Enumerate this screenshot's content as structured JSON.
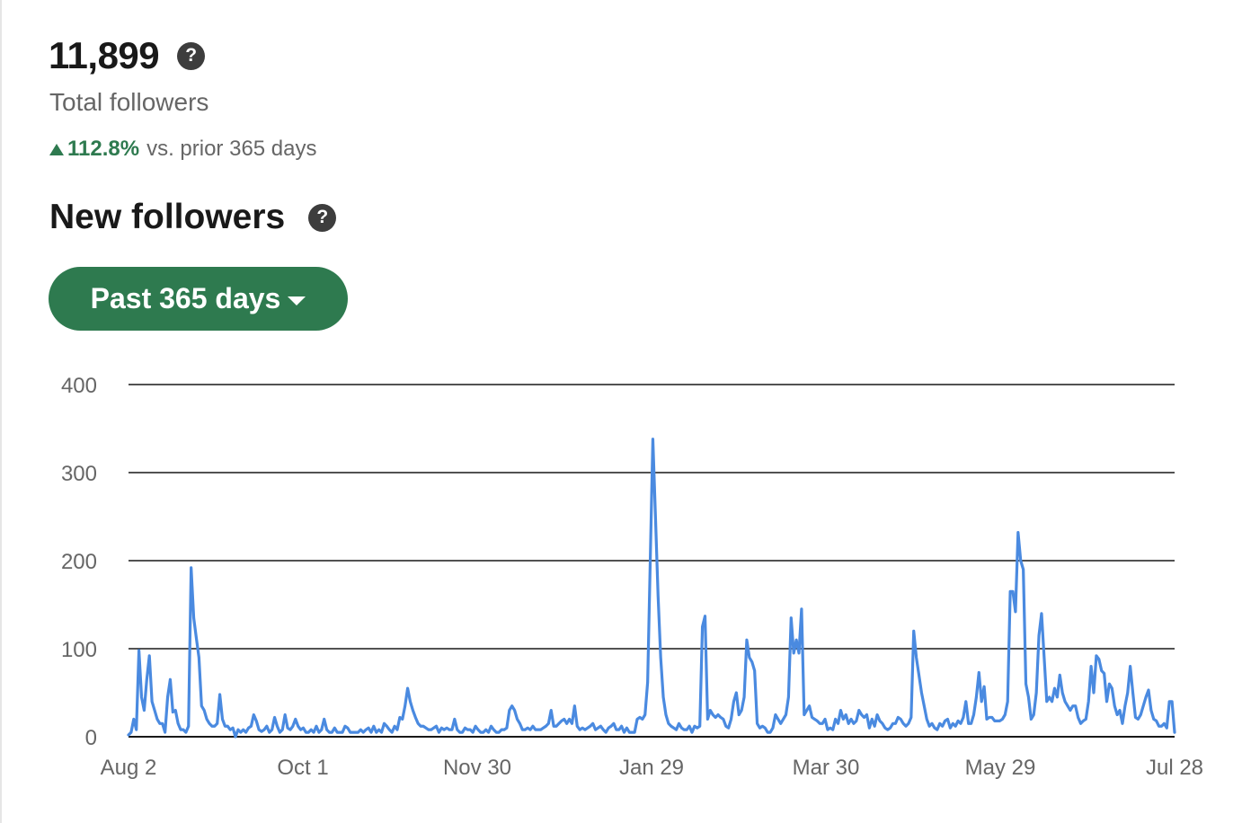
{
  "summary": {
    "total_value": "11,899",
    "total_label": "Total followers",
    "change_pct": "112.8%",
    "change_text": "vs. prior 365 days",
    "help_glyph": "?"
  },
  "section": {
    "title": "New followers",
    "range_label": "Past 365 days"
  },
  "colors": {
    "accent": "#2e7a4f",
    "line": "#4a8ae0",
    "grid": "#191919"
  },
  "chart_data": {
    "type": "line",
    "title": "",
    "xlabel": "",
    "ylabel": "",
    "x_start": "Aug 2",
    "x_end": "Jul 28",
    "ylim": [
      0,
      400
    ],
    "y_ticks": [
      0,
      100,
      200,
      300,
      400
    ],
    "x_ticks": [
      "Aug 2",
      "Oct 1",
      "Nov 30",
      "Jan 29",
      "Mar 30",
      "May 29",
      "Jul 28"
    ],
    "grid": true,
    "legend": "none",
    "series": [
      {
        "values": [
          2,
          5,
          20,
          8,
          98,
          45,
          30,
          65,
          92,
          40,
          30,
          20,
          15,
          15,
          5,
          45,
          65,
          28,
          30,
          15,
          8,
          8,
          5,
          12,
          192,
          135,
          112,
          90,
          35,
          30,
          20,
          15,
          12,
          12,
          15,
          48,
          20,
          12,
          12,
          8,
          10,
          0,
          8,
          5,
          8,
          5,
          10,
          12,
          25,
          18,
          8,
          6,
          8,
          12,
          5,
          8,
          22,
          12,
          5,
          8,
          25,
          10,
          8,
          12,
          20,
          12,
          8,
          10,
          5,
          5,
          8,
          5,
          12,
          5,
          8,
          20,
          8,
          5,
          5,
          10,
          5,
          5,
          5,
          12,
          10,
          5,
          5,
          5,
          5,
          8,
          5,
          8,
          10,
          5,
          12,
          5,
          8,
          5,
          15,
          12,
          8,
          5,
          12,
          8,
          22,
          20,
          35,
          55,
          40,
          30,
          22,
          15,
          12,
          12,
          10,
          8,
          8,
          10,
          12,
          5,
          10,
          8,
          10,
          8,
          8,
          20,
          8,
          5,
          5,
          10,
          8,
          8,
          5,
          12,
          8,
          5,
          5,
          8,
          5,
          12,
          8,
          5,
          5,
          8,
          8,
          10,
          30,
          35,
          30,
          20,
          15,
          8,
          8,
          10,
          8,
          12,
          8,
          8,
          8,
          10,
          12,
          15,
          30,
          12,
          12,
          15,
          18,
          20,
          15,
          20,
          15,
          35,
          12,
          8,
          10,
          8,
          10,
          12,
          15,
          8,
          10,
          12,
          8,
          5,
          10,
          12,
          15,
          8,
          8,
          12,
          5,
          10,
          5,
          5,
          5,
          20,
          22,
          20,
          25,
          62,
          200,
          338,
          250,
          160,
          90,
          45,
          25,
          15,
          12,
          10,
          8,
          15,
          10,
          8,
          8,
          12,
          5,
          12,
          10,
          12,
          125,
          137,
          20,
          30,
          25,
          22,
          25,
          22,
          20,
          12,
          10,
          20,
          40,
          50,
          25,
          30,
          45,
          110,
          90,
          85,
          75,
          15,
          10,
          12,
          10,
          5,
          5,
          10,
          25,
          20,
          15,
          20,
          25,
          45,
          135,
          95,
          110,
          95,
          145,
          25,
          30,
          35,
          22,
          20,
          18,
          15,
          15,
          20,
          8,
          10,
          8,
          20,
          15,
          30,
          20,
          25,
          15,
          20,
          15,
          18,
          30,
          25,
          22,
          25,
          10,
          20,
          12,
          25,
          18,
          15,
          10,
          8,
          10,
          15,
          15,
          22,
          20,
          15,
          12,
          15,
          22,
          120,
          90,
          70,
          50,
          35,
          20,
          12,
          15,
          10,
          8,
          15,
          12,
          18,
          20,
          10,
          15,
          12,
          18,
          15,
          22,
          40,
          15,
          15,
          25,
          45,
          73,
          40,
          57,
          20,
          22,
          22,
          18,
          18,
          18,
          20,
          25,
          40,
          165,
          165,
          142,
          232,
          200,
          190,
          60,
          45,
          20,
          25,
          50,
          115,
          140,
          90,
          40,
          45,
          40,
          55,
          45,
          70,
          50,
          40,
          35,
          30,
          35,
          35,
          22,
          15,
          18,
          20,
          40,
          80,
          50,
          92,
          88,
          75,
          72,
          40,
          60,
          55,
          35,
          25,
          30,
          15,
          35,
          50,
          80,
          50,
          22,
          20,
          25,
          35,
          45,
          53,
          30,
          20,
          18,
          12,
          12,
          15,
          10,
          40,
          40,
          5
        ]
      }
    ]
  }
}
